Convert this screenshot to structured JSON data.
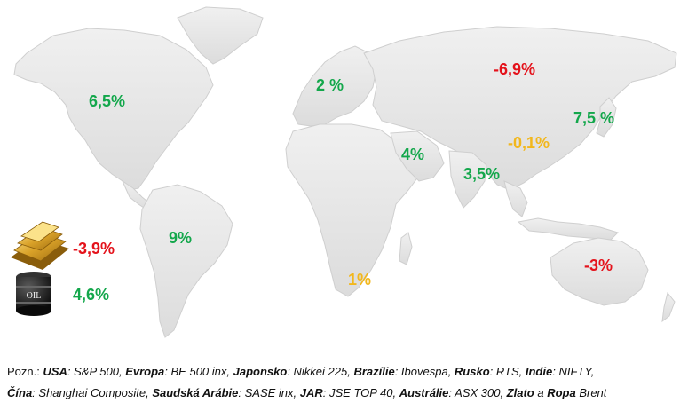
{
  "labels": {
    "usa": "6,5%",
    "europe": "2 %",
    "russia": "-6,9%",
    "japan": "7,5 %",
    "china": "-0,1%",
    "saudi": "4%",
    "india": "3,5%",
    "brazil": "9%",
    "jar": "1%",
    "australia": "-3%",
    "gold": "-3,9%",
    "oil": "4,6%"
  },
  "oil_barrel_text": "OIL",
  "note": {
    "prefix": "Pozn.: ",
    "line1": [
      {
        "k": "USA",
        "v": ": S&P 500, "
      },
      {
        "k": "Evropa",
        "v": ": BE 500 inx, "
      },
      {
        "k": "Japonsko",
        "v": ": Nikkei 225, "
      },
      {
        "k": "Brazílie",
        "v": ": Ibovespa, "
      },
      {
        "k": "Rusko",
        "v": ": RTS, "
      },
      {
        "k": "Indie",
        "v": ": NIFTY,"
      }
    ],
    "line2": [
      {
        "k": "Čína",
        "v": ": Shanghai Composite, "
      },
      {
        "k": "Saudská Arábie",
        "v": ": SASE inx, "
      },
      {
        "k": "JAR",
        "v": ": JSE TOP 40, "
      },
      {
        "k": "Austrálie",
        "v": ": ASX 300, "
      },
      {
        "k": "Zlato",
        "v": " a "
      },
      {
        "k": "Ropa",
        "v": " Brent"
      }
    ]
  },
  "colors": {
    "positive": "#13a74b",
    "negative": "#e4121b",
    "neutral": "#f2b71c",
    "land": "#e6e6e6"
  }
}
